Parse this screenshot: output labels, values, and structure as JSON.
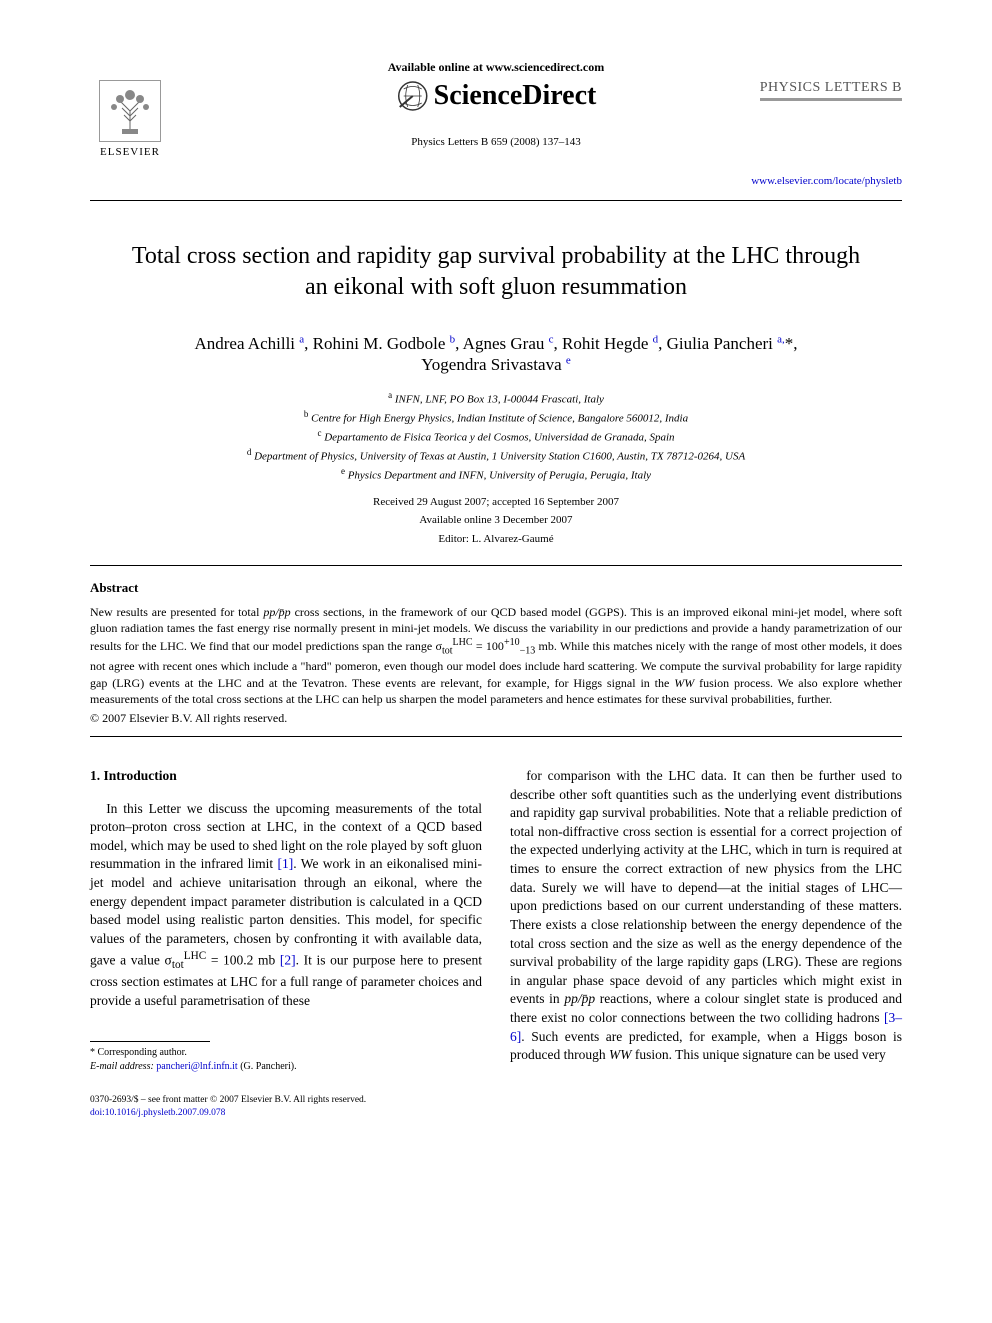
{
  "header": {
    "available_text": "Available online at www.sciencedirect.com",
    "brand": "ScienceDirect",
    "publisher": "ELSEVIER",
    "citation": "Physics Letters B 659 (2008) 137–143",
    "journal_name": "PHYSICS LETTERS B",
    "journal_link": "www.elsevier.com/locate/physletb"
  },
  "title": "Total cross section and rapidity gap survival probability at the LHC through an eikonal with soft gluon resummation",
  "authors_line1": "Andrea Achilli <sup>a</sup>, Rohini M. Godbole <sup>b</sup>, Agnes Grau <sup>c</sup>, Rohit Hegde <sup>d</sup>, Giulia Pancheri <sup>a,</sup><span class=\"corr-mark\">*</span>,",
  "authors_line2": "Yogendra Srivastava <sup>e</sup>",
  "affiliations": [
    {
      "sup": "a",
      "text": "INFN, LNF, PO Box 13, I-00044 Frascati, Italy"
    },
    {
      "sup": "b",
      "text": "Centre for High Energy Physics, Indian Institute of Science, Bangalore 560012, India"
    },
    {
      "sup": "c",
      "text": "Departamento de Fisica Teorica y del Cosmos, Universidad de Granada, Spain"
    },
    {
      "sup": "d",
      "text": "Department of Physics, University of Texas at Austin, 1 University Station C1600, Austin, TX 78712-0264, USA"
    },
    {
      "sup": "e",
      "text": "Physics Department and INFN, University of Perugia, Perugia, Italy"
    }
  ],
  "dates": {
    "received": "Received 29 August 2007; accepted 16 September 2007",
    "online": "Available online 3 December 2007",
    "editor": "Editor: L. Alvarez-Gaumé"
  },
  "abstract": {
    "heading": "Abstract",
    "body_html": "New results are presented for total <i>pp/p̄p</i> cross sections, in the framework of our QCD based model (GGPS). This is an improved eikonal mini-jet model, where soft gluon radiation tames the fast energy rise normally present in mini-jet models. We discuss the variability in our predictions and provide a handy parametrization of our results for the LHC. We find that our model predictions span the range σ<sub>tot</sub><sup>LHC</sup> = 100<sup>+10</sup><sub>−13</sub> mb. While this matches nicely with the range of most other models, it does not agree with recent ones which include a \"hard\" pomeron, even though our model does include hard scattering. We compute the survival probability for large rapidity gap (LRG) events at the LHC and at the Tevatron. These events are relevant, for example, for Higgs signal in the <i>WW</i> fusion process. We also explore whether measurements of the total cross sections at the LHC can help us sharpen the model parameters and hence estimates for these survival probabilities, further.",
    "copyright": "© 2007 Elsevier B.V. All rights reserved."
  },
  "section1": {
    "heading": "1. Introduction",
    "col1_html": "In this Letter we discuss the upcoming measurements of the total proton–proton cross section at LHC, in the context of a QCD based model, which may be used to shed light on the role played by soft gluon resummation in the infrared limit <span class=\"ref\">[1]</span>. We work in an eikonalised mini-jet model and achieve unitarisation through an eikonal, where the energy dependent impact parameter distribution is calculated in a QCD based model using realistic parton densities. This model, for specific values of the parameters, chosen by confronting it with available data, gave a value σ<sub>tot</sub><sup>LHC</sup> = 100.2 mb <span class=\"ref\">[2]</span>. It is our purpose here to present cross section estimates at LHC for a full range of parameter choices and provide a useful parametrisation of these",
    "col2_html": "for comparison with the LHC data. It can then be further used to describe other soft quantities such as the underlying event distributions and rapidity gap survival probabilities. Note that a reliable prediction of total non-diffractive cross section is essential for a correct projection of the expected underlying activity at the LHC, which in turn is required at times to ensure the correct extraction of new physics from the LHC data. Surely we will have to depend—at the initial stages of LHC—upon predictions based on our current understanding of these matters. There exists a close relationship between the energy dependence of the total cross section and the size as well as the energy dependence of the survival probability of the large rapidity gaps (LRG). These are regions in angular phase space devoid of any particles which might exist in events in <i>pp/p̄p</i> reactions, where a colour singlet state is produced and there exist no color connections between the two colliding hadrons <span class=\"ref\">[3–6]</span>. Such events are predicted, for example, when a Higgs boson is produced through <i>WW</i> fusion. This unique signature can be used very"
  },
  "footnote": {
    "corresponding": "* Corresponding author.",
    "email_label": "E-mail address:",
    "email": "pancheri@lnf.infn.it",
    "email_name": "(G. Pancheri)."
  },
  "footer": {
    "line1": "0370-2693/$ – see front matter © 2007 Elsevier B.V. All rights reserved.",
    "doi": "doi:10.1016/j.physletb.2007.09.078"
  },
  "colors": {
    "link": "#0000cc",
    "text": "#000000",
    "bg": "#ffffff",
    "rule": "#000000"
  },
  "fonts": {
    "body_family": "Times New Roman, serif",
    "title_size_pt": 18,
    "body_size_pt": 10,
    "abstract_size_pt": 9,
    "affil_size_pt": 8
  }
}
